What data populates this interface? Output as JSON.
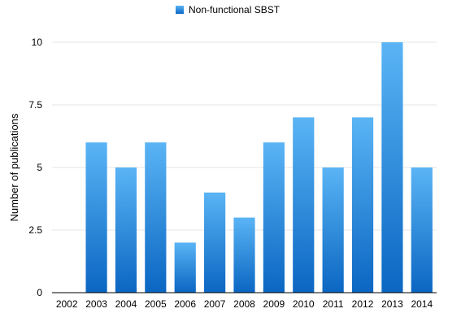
{
  "chart_data": {
    "type": "bar",
    "categories": [
      "2002",
      "2003",
      "2004",
      "2005",
      "2006",
      "2007",
      "2008",
      "2009",
      "2010",
      "2011",
      "2012",
      "2013",
      "2014"
    ],
    "series": [
      {
        "name": "Non-functional SBST",
        "values": [
          0,
          6,
          5,
          6,
          2,
          4,
          3,
          6,
          7,
          5,
          7,
          10,
          5
        ]
      }
    ],
    "xlabel": "",
    "ylabel": "Number of publications",
    "ylim": [
      0,
      10
    ],
    "yticks": [
      "0",
      "2.5",
      "5",
      "7.5",
      "10"
    ],
    "grid": true,
    "legend_position": "top-center",
    "colors": {
      "bar_top": "#5ab4f5",
      "bar_bottom": "#0a66c2",
      "grid": "#e6e6e6",
      "axis": "#000000"
    }
  }
}
